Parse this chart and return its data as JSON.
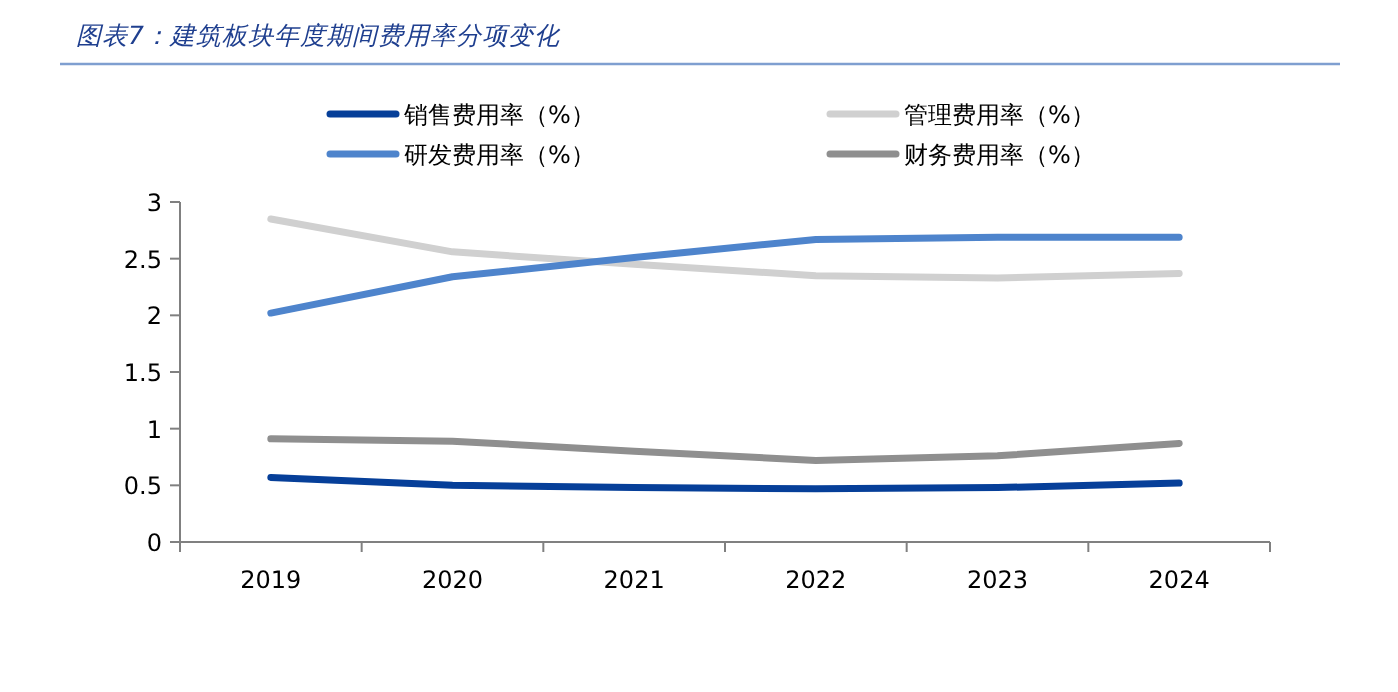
{
  "chart_data": {
    "type": "line",
    "title": "图表7：建筑板块年度期间费用率分项变化",
    "categories": [
      "2019",
      "2020",
      "2021",
      "2022",
      "2023",
      "2024"
    ],
    "series": [
      {
        "name": "销售费用率（%）",
        "color": "#063f99",
        "values": [
          0.57,
          0.5,
          0.48,
          0.47,
          0.48,
          0.52
        ]
      },
      {
        "name": "管理费用率（%）",
        "color": "#d0d0d0",
        "values": [
          2.85,
          2.56,
          2.45,
          2.35,
          2.33,
          2.37
        ]
      },
      {
        "name": "研发费用率（%）",
        "color": "#4e84cc",
        "values": [
          2.02,
          2.34,
          2.51,
          2.67,
          2.69,
          2.69
        ]
      },
      {
        "name": "财务费用率（%）",
        "color": "#8f8f8f",
        "values": [
          0.91,
          0.89,
          0.8,
          0.72,
          0.76,
          0.87
        ]
      }
    ],
    "ylim": [
      0,
      3
    ],
    "yticks": [
      0,
      0.5,
      1,
      1.5,
      2,
      2.5,
      3
    ],
    "grid": false,
    "legend": "top",
    "marker": "none",
    "line_style": "solid"
  }
}
